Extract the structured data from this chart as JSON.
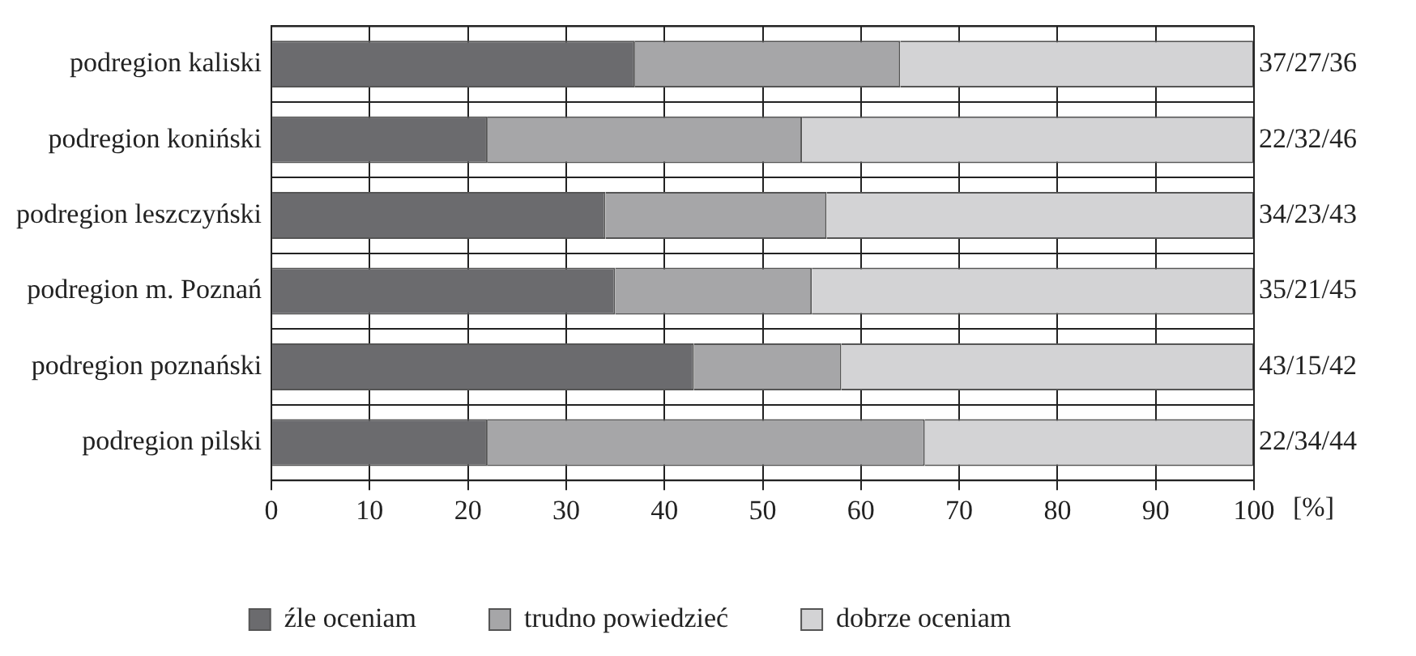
{
  "chart_data": {
    "type": "bar",
    "orientation": "horizontal",
    "stacked": true,
    "xlabel": "[%]",
    "categories": [
      "podregion kaliski",
      "podregion koniński",
      "podregion leszczyński",
      "podregion m. Poznań",
      "podregion poznański",
      "podregion pilski"
    ],
    "series": [
      {
        "name": "źle oceniam",
        "color": "#6b6b6e",
        "values": [
          37,
          22,
          34,
          35,
          43,
          22
        ]
      },
      {
        "name": "trudno powiedzieć",
        "color": "#a6a6a8",
        "values": [
          27,
          32,
          22.5,
          20,
          15,
          44.5
        ]
      },
      {
        "name": "dobrze oceniam",
        "color": "#d3d3d5",
        "values": [
          36,
          46,
          43.5,
          45,
          42,
          33.5
        ]
      }
    ],
    "xlim": [
      0,
      100
    ],
    "xticks": [
      0,
      10,
      20,
      30,
      40,
      50,
      60,
      70,
      80,
      90,
      100
    ],
    "grid": true,
    "legend": "bottom",
    "annotations": [
      "37/27/36",
      "22/32/46",
      "34/23/43",
      "35/21/45",
      "43/15/42",
      "22/34/44"
    ]
  }
}
